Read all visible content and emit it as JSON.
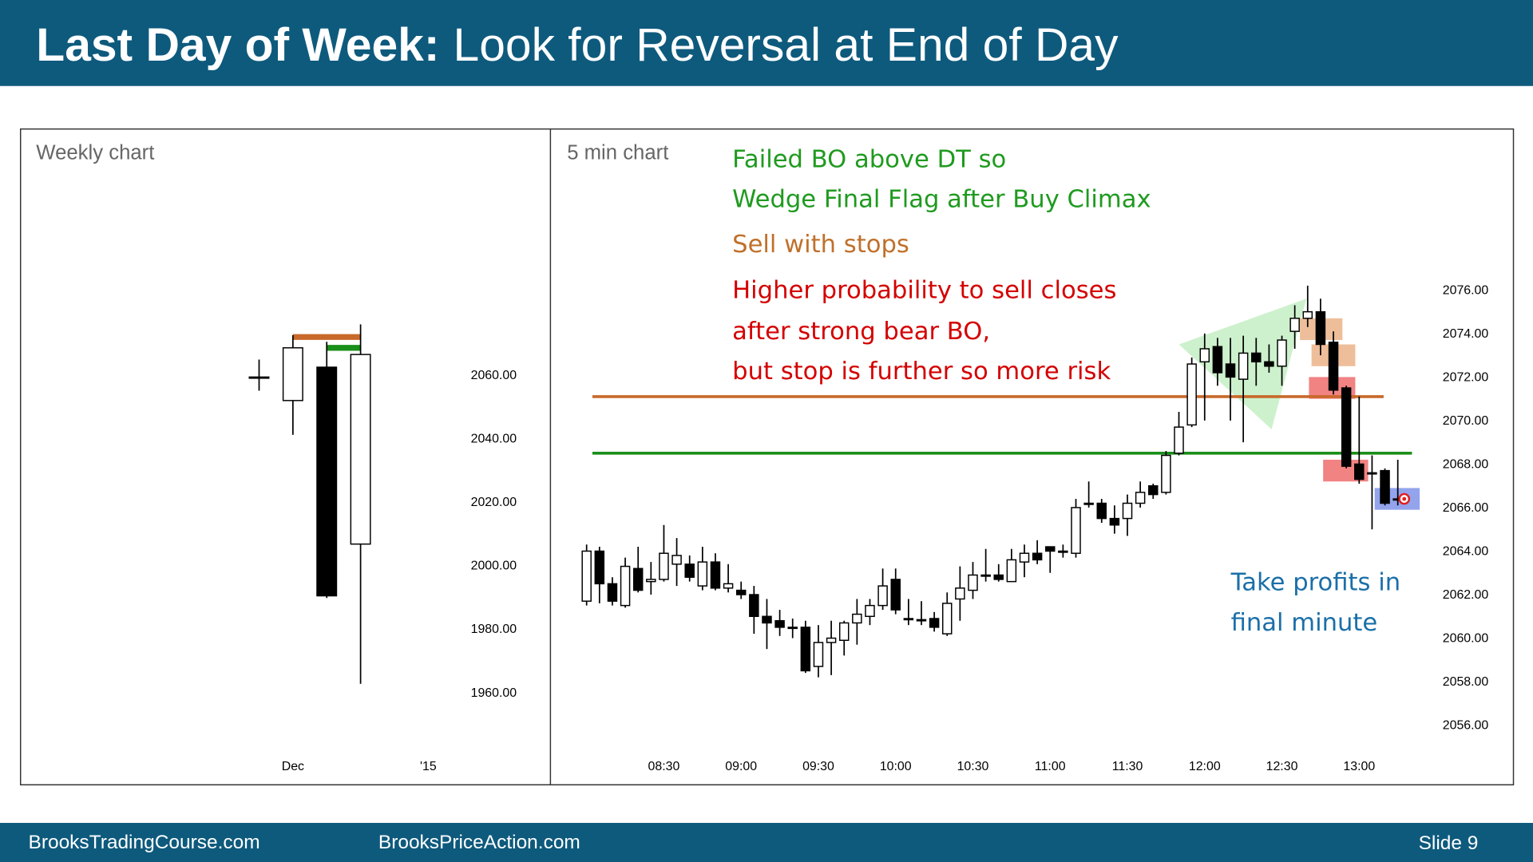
{
  "header": {
    "title_bold": "Last Day of Week:",
    "title_rest": "Look for Reversal at End of Day"
  },
  "footer": {
    "left": "BrooksTradingCourse.com",
    "center": "BrooksPriceAction.com",
    "slide": "Slide 9"
  },
  "chart_data": [
    {
      "type": "candlestick",
      "title": "Weekly chart",
      "categories": [
        null,
        "Dec",
        null,
        null,
        null,
        "'15"
      ],
      "open": [
        2059.4,
        2052.0,
        2062.5,
        2006.8,
        null,
        null
      ],
      "high": [
        2064.9,
        2072.6,
        2070.5,
        2076.0,
        null,
        null
      ],
      "low": [
        2055.1,
        2041.2,
        1989.8,
        1962.8,
        null,
        null
      ],
      "close": [
        2059.4,
        2068.6,
        1990.5,
        2066.5,
        null,
        null
      ],
      "ylim": [
        1931,
        2137.5
      ],
      "yticks": [
        {
          "value": 1960,
          "label": "1960.00"
        },
        {
          "value": 1980,
          "label": "1980.00"
        },
        {
          "value": 2000,
          "label": "2000.00"
        },
        {
          "value": 2020,
          "label": "2020.00"
        },
        {
          "value": 2040,
          "label": "2040.00"
        },
        {
          "value": 2060,
          "label": "2060.00"
        }
      ],
      "levels": [
        {
          "value": 2072,
          "color": "#c8692a",
          "from": 1,
          "to": 3
        },
        {
          "value": 2068.6,
          "color": "#1a8f1a",
          "from": 2,
          "to": 3
        }
      ]
    },
    {
      "type": "candlestick",
      "title": "5 min chart",
      "categories": [
        null,
        null,
        null,
        null,
        null,
        null,
        "08:30",
        null,
        null,
        null,
        null,
        null,
        "09:00",
        null,
        null,
        null,
        null,
        null,
        "09:30",
        null,
        null,
        null,
        null,
        null,
        "10:00",
        null,
        null,
        null,
        null,
        null,
        "10:30",
        null,
        null,
        null,
        null,
        null,
        "11:00",
        null,
        null,
        null,
        null,
        null,
        "11:30",
        null,
        null,
        null,
        null,
        null,
        "12:00",
        null,
        null,
        null,
        null,
        null,
        "12:30",
        null,
        null,
        null,
        null,
        null,
        "13:00",
        null,
        null,
        null
      ],
      "open": [
        2061.7,
        2064.0,
        2062.5,
        2061.5,
        2063.2,
        2062.6,
        2062.7,
        2063.4,
        2063.4,
        2062.4,
        2063.5,
        2062.3,
        2062.2,
        2062.0,
        2061.0,
        2060.8,
        2060.5,
        2060.5,
        2058.7,
        2059.8,
        2059.9,
        2060.7,
        2061.0,
        2061.5,
        2062.7,
        2060.9,
        2060.85,
        2060.9,
        2060.2,
        2061.8,
        2062.2,
        2062.9,
        2062.9,
        2062.6,
        2063.5,
        2063.9,
        2064.2,
        2064.0,
        2063.9,
        2066.2,
        2066.2,
        2065.5,
        2065.5,
        2066.2,
        2067.0,
        2066.7,
        2068.5,
        2069.8,
        2072.7,
        2073.4,
        2072.6,
        2071.9,
        2073.1,
        2072.7,
        2072.5,
        2074.1,
        2074.7,
        2075.0,
        2073.6,
        2071.5,
        2068.0,
        2067.6,
        2067.7,
        2066.4
      ],
      "high": [
        2064.3,
        2064.2,
        2062.8,
        2063.7,
        2064.2,
        2063.5,
        2065.2,
        2064.6,
        2063.8,
        2064.2,
        2063.9,
        2063.4,
        2062.6,
        2062.4,
        2061.8,
        2061.3,
        2060.9,
        2060.8,
        2060.6,
        2060.8,
        2060.8,
        2061.8,
        2061.8,
        2063.2,
        2063.2,
        2061.8,
        2061.7,
        2061.2,
        2062.1,
        2063.3,
        2063.5,
        2064.1,
        2063.4,
        2064.1,
        2064.3,
        2064.5,
        2064.2,
        2064.3,
        2066.4,
        2067.2,
        2066.4,
        2066.1,
        2066.6,
        2067.2,
        2067.1,
        2068.6,
        2070.4,
        2072.9,
        2074.0,
        2073.8,
        2073.8,
        2073.9,
        2073.8,
        2073.5,
        2073.9,
        2075.3,
        2076.2,
        2075.6,
        2074.1,
        2071.6,
        2071.1,
        2068.4,
        2067.8,
        2068.2
      ],
      "low": [
        2061.5,
        2061.6,
        2061.5,
        2061.4,
        2062.1,
        2062.0,
        2062.6,
        2062.4,
        2062.6,
        2062.2,
        2062.2,
        2062.1,
        2061.8,
        2060.2,
        2059.5,
        2060.1,
        2060.0,
        2058.4,
        2058.2,
        2058.3,
        2059.2,
        2059.7,
        2060.6,
        2061.3,
        2061.1,
        2060.6,
        2060.6,
        2060.3,
        2060.1,
        2060.8,
        2061.8,
        2062.6,
        2062.6,
        2062.6,
        2062.8,
        2063.4,
        2063.0,
        2063.7,
        2063.7,
        2066.0,
        2065.3,
        2064.8,
        2064.7,
        2066.0,
        2066.4,
        2066.6,
        2068.4,
        2069.7,
        2070.0,
        2071.6,
        2070.0,
        2069.0,
        2071.6,
        2072.2,
        2071.6,
        2073.3,
        2074.3,
        2073.0,
        2071.2,
        2067.8,
        2067.1,
        2065.0,
        2066.1,
        2066.1
      ],
      "close": [
        2064.0,
        2062.5,
        2061.7,
        2063.3,
        2062.2,
        2062.7,
        2063.9,
        2063.8,
        2062.8,
        2063.5,
        2062.3,
        2062.5,
        2062.0,
        2061.0,
        2060.7,
        2060.5,
        2060.5,
        2058.5,
        2059.8,
        2060.0,
        2060.7,
        2061.1,
        2061.5,
        2062.4,
        2061.3,
        2060.9,
        2060.8,
        2060.5,
        2061.6,
        2062.3,
        2062.9,
        2062.9,
        2062.7,
        2063.6,
        2063.9,
        2063.6,
        2064.0,
        2064.0,
        2066.0,
        2066.2,
        2065.5,
        2065.2,
        2066.2,
        2066.7,
        2066.6,
        2068.4,
        2069.7,
        2072.6,
        2073.3,
        2072.2,
        2072.0,
        2073.1,
        2072.7,
        2072.5,
        2073.7,
        2074.7,
        2075.0,
        2073.5,
        2071.4,
        2067.9,
        2067.3,
        2067.6,
        2066.2,
        2066.4
      ],
      "ylim": [
        2053.26,
        2083.4
      ],
      "yticks": [
        {
          "value": 2056,
          "label": "2056.00"
        },
        {
          "value": 2058,
          "label": "2058.00"
        },
        {
          "value": 2060,
          "label": "2060.00"
        },
        {
          "value": 2062,
          "label": "2062.00"
        },
        {
          "value": 2064,
          "label": "2064.00"
        },
        {
          "value": 2066,
          "label": "2066.00"
        },
        {
          "value": 2068,
          "label": "2068.00"
        },
        {
          "value": 2070,
          "label": "2070.00"
        },
        {
          "value": 2072,
          "label": "2072.00"
        },
        {
          "value": 2074,
          "label": "2074.00"
        },
        {
          "value": 2076,
          "label": "2076.00"
        }
      ],
      "levels": [
        {
          "value": 2071.1,
          "color": "#c8692a",
          "from": 0.45,
          "to": 61.9
        },
        {
          "value": 2068.5,
          "color": "#1a8f1a",
          "from": 0.45,
          "to": 64.1
        }
      ],
      "wedge": {
        "color": "#9be39b",
        "points": [
          [
            46,
            2073.5
          ],
          [
            55.9,
            2075.6
          ],
          [
            53.2,
            2069.6
          ]
        ]
      },
      "zones": [
        {
          "bars": [
            55.4,
            58.7
          ],
          "range": [
            2073.7,
            2074.7
          ],
          "color": "#e8a878"
        },
        {
          "bars": [
            56.3,
            59.7
          ],
          "range": [
            2072.5,
            2073.5
          ],
          "color": "#e8a878"
        },
        {
          "bars": [
            56.1,
            59.7
          ],
          "range": [
            2071.0,
            2072.0
          ],
          "color": "#ee5a5a"
        },
        {
          "bars": [
            57.2,
            60.7
          ],
          "range": [
            2067.2,
            2068.2
          ],
          "color": "#ee5a5a"
        },
        {
          "bars": [
            61.2,
            64.7
          ],
          "range": [
            2065.9,
            2066.9
          ],
          "color": "#6f86e6"
        }
      ],
      "marker": {
        "bar": 63.5,
        "value": 2066.4,
        "color": "#e02020"
      },
      "annotations": [
        {
          "lines": [
            "Failed BO above DT so",
            "Wedge Final Flag after Buy Climax"
          ],
          "color": "#1f9a1f"
        },
        {
          "lines": [
            "Sell with stops"
          ],
          "color": "#c0702a"
        },
        {
          "lines": [
            "Higher probability to sell closes",
            "after strong bear BO,",
            "but stop is further so more risk"
          ],
          "color": "#d40000"
        },
        {
          "lines": [
            "Take profits in",
            "final minute"
          ],
          "color": "#1a6fa8"
        }
      ]
    }
  ]
}
